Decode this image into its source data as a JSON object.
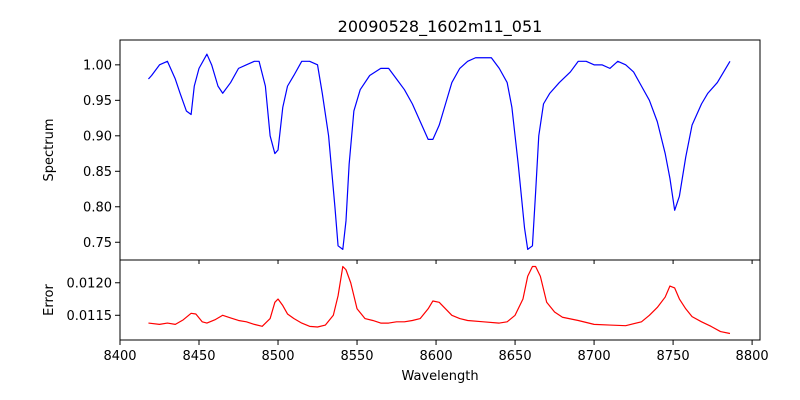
{
  "chart_data": [
    {
      "type": "line",
      "title": "20090528_1602m11_051",
      "xlabel": "",
      "ylabel": "Spectrum",
      "xlim": [
        8400,
        8805
      ],
      "ylim": [
        0.725,
        1.035
      ],
      "xticks": [
        8400,
        8450,
        8500,
        8550,
        8600,
        8650,
        8700,
        8750,
        8800
      ],
      "yticks": [
        0.75,
        0.8,
        0.85,
        0.9,
        0.95,
        1.0
      ],
      "ytick_labels": [
        "0.75",
        "0.80",
        "0.85",
        "0.90",
        "0.95",
        "1.00"
      ],
      "color": "#0000ff",
      "series": [
        {
          "x": [
            8418,
            8420,
            8425,
            8430,
            8435,
            8438,
            8442,
            8445,
            8447,
            8450,
            8455,
            8458,
            8462,
            8465,
            8470,
            8475,
            8480,
            8485,
            8488,
            8492,
            8495,
            8498,
            8500,
            8503,
            8506,
            8510,
            8515,
            8520,
            8525,
            8528,
            8532,
            8536,
            8538,
            8541,
            8543,
            8545,
            8548,
            8552,
            8558,
            8565,
            8570,
            8575,
            8580,
            8585,
            8590,
            8595,
            8598,
            8602,
            8606,
            8610,
            8615,
            8620,
            8625,
            8630,
            8635,
            8640,
            8645,
            8648,
            8652,
            8656,
            8658,
            8661,
            8663,
            8665,
            8668,
            8672,
            8678,
            8685,
            8690,
            8695,
            8700,
            8705,
            8710,
            8715,
            8720,
            8725,
            8730,
            8735,
            8740,
            8745,
            8748,
            8751,
            8754,
            8758,
            8762,
            8768,
            8772,
            8778,
            8782,
            8786
          ],
          "y": [
            0.98,
            0.985,
            1.0,
            1.005,
            0.98,
            0.96,
            0.935,
            0.93,
            0.97,
            0.995,
            1.015,
            1.0,
            0.97,
            0.96,
            0.975,
            0.995,
            1.0,
            1.005,
            1.005,
            0.97,
            0.9,
            0.875,
            0.88,
            0.94,
            0.97,
            0.985,
            1.005,
            1.005,
            1.0,
            0.96,
            0.9,
            0.8,
            0.745,
            0.74,
            0.78,
            0.86,
            0.935,
            0.965,
            0.985,
            0.995,
            0.995,
            0.98,
            0.965,
            0.945,
            0.92,
            0.895,
            0.895,
            0.915,
            0.945,
            0.975,
            0.995,
            1.005,
            1.01,
            1.01,
            1.01,
            0.995,
            0.975,
            0.94,
            0.86,
            0.77,
            0.74,
            0.745,
            0.82,
            0.9,
            0.945,
            0.96,
            0.975,
            0.99,
            1.005,
            1.005,
            1.0,
            1.0,
            0.995,
            1.005,
            1.0,
            0.99,
            0.97,
            0.95,
            0.92,
            0.875,
            0.84,
            0.795,
            0.815,
            0.87,
            0.915,
            0.945,
            0.96,
            0.975,
            0.99,
            1.005
          ]
        }
      ]
    },
    {
      "type": "line",
      "title": "",
      "xlabel": "Wavelength",
      "ylabel": "Error",
      "xlim": [
        8400,
        8805
      ],
      "ylim": [
        0.01112,
        0.01235
      ],
      "xticks": [
        8400,
        8450,
        8500,
        8550,
        8600,
        8650,
        8700,
        8750,
        8800
      ],
      "yticks": [
        0.0115,
        0.012
      ],
      "ytick_labels": [
        "0.0115",
        "0.0120"
      ],
      "color": "#ff0000",
      "series": [
        {
          "x": [
            8418,
            8425,
            8430,
            8435,
            8440,
            8445,
            8448,
            8452,
            8455,
            8460,
            8465,
            8470,
            8475,
            8480,
            8485,
            8490,
            8495,
            8498,
            8500,
            8503,
            8506,
            8510,
            8515,
            8520,
            8525,
            8530,
            8535,
            8538,
            8541,
            8543,
            8546,
            8550,
            8555,
            8560,
            8565,
            8570,
            8575,
            8580,
            8585,
            8590,
            8595,
            8598,
            8602,
            8606,
            8610,
            8615,
            8620,
            8630,
            8640,
            8645,
            8650,
            8655,
            8658,
            8661,
            8663,
            8666,
            8670,
            8675,
            8680,
            8690,
            8700,
            8710,
            8720,
            8730,
            8735,
            8740,
            8745,
            8748,
            8751,
            8754,
            8758,
            8762,
            8768,
            8774,
            8780,
            8786
          ],
          "y": [
            0.01138,
            0.01136,
            0.01138,
            0.01136,
            0.01143,
            0.01153,
            0.01152,
            0.0114,
            0.01138,
            0.01143,
            0.0115,
            0.01146,
            0.01142,
            0.0114,
            0.01136,
            0.01133,
            0.01145,
            0.0117,
            0.01175,
            0.01165,
            0.01152,
            0.01145,
            0.01138,
            0.01133,
            0.01132,
            0.01135,
            0.0115,
            0.0118,
            0.01225,
            0.0122,
            0.012,
            0.0116,
            0.01145,
            0.01142,
            0.01138,
            0.01138,
            0.0114,
            0.0114,
            0.01142,
            0.01145,
            0.0116,
            0.01172,
            0.0117,
            0.0116,
            0.0115,
            0.01145,
            0.01142,
            0.0114,
            0.01138,
            0.0114,
            0.0115,
            0.01175,
            0.0121,
            0.01225,
            0.01225,
            0.0121,
            0.0117,
            0.01155,
            0.01147,
            0.01142,
            0.01136,
            0.01135,
            0.01134,
            0.0114,
            0.0115,
            0.01162,
            0.01178,
            0.01195,
            0.01192,
            0.01175,
            0.0116,
            0.01148,
            0.0114,
            0.01133,
            0.01125,
            0.01122
          ]
        }
      ]
    }
  ]
}
